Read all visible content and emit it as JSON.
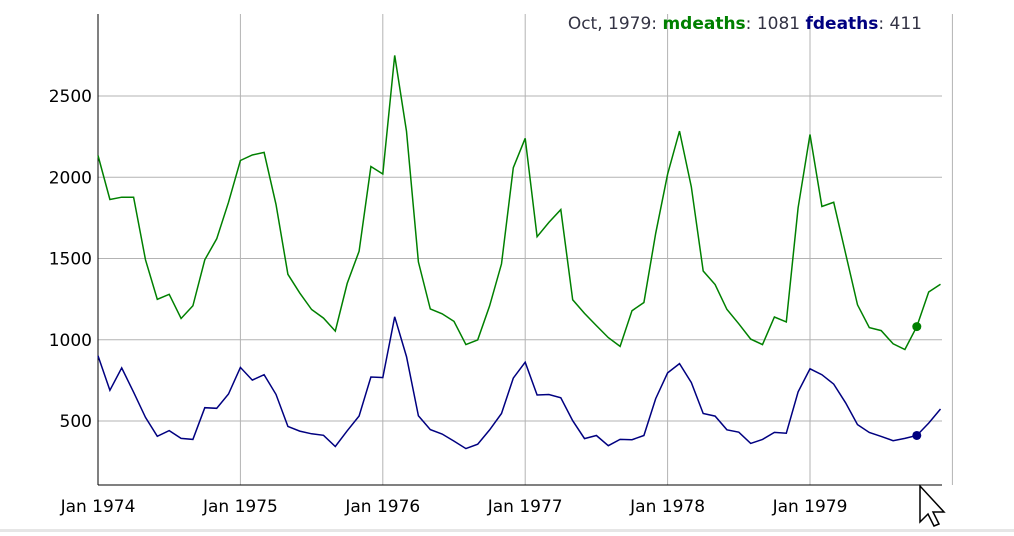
{
  "legend": {
    "date": "Oct, 1979",
    "sep1": ": ",
    "series1_label": "mdeaths",
    "sep2": ": ",
    "series1_value": "1081",
    "series2_label": "fdeaths",
    "sep3": ": ",
    "series2_value": "411"
  },
  "colors": {
    "mdeaths": "#008000",
    "fdeaths": "#000080",
    "grid": "#b3b3b3",
    "axis": "#000000"
  },
  "cursor_icon": "mouse-pointer-icon",
  "chart_data": {
    "type": "line",
    "title": "",
    "xlabel": "",
    "ylabel": "",
    "x_start": "Jan 1974",
    "x_frequency": "monthly",
    "x_tick_labels": [
      "Jan 1974",
      "Jan 1975",
      "Jan 1976",
      "Jan 1977",
      "Jan 1978",
      "Jan 1979"
    ],
    "y_tick_values": [
      500,
      1000,
      1500,
      2000,
      2500
    ],
    "y_tick_labels": [
      "500",
      "1000",
      "1500",
      "2000",
      "2500"
    ],
    "ylim": [
      150,
      2900
    ],
    "grid": true,
    "highlight": {
      "date": "Oct, 1979",
      "mdeaths": 1081,
      "fdeaths": 411
    },
    "series": [
      {
        "name": "mdeaths",
        "values": [
          2134,
          1863,
          1877,
          1877,
          1492,
          1249,
          1280,
          1131,
          1209,
          1492,
          1621,
          1846,
          2103,
          2137,
          2153,
          1833,
          1403,
          1288,
          1186,
          1133,
          1053,
          1347,
          1545,
          2066,
          2020,
          2750,
          2283,
          1479,
          1189,
          1160,
          1113,
          970,
          999,
          1208,
          1467,
          2059,
          2240,
          1634,
          1722,
          1801,
          1246,
          1162,
          1087,
          1013,
          959,
          1179,
          1229,
          1655,
          2019,
          2284,
          1942,
          1423,
          1340,
          1187,
          1098,
          1004,
          970,
          1140,
          1110,
          1812,
          2263,
          1820,
          1846,
          1531,
          1215,
          1075,
          1056,
          975,
          940,
          1081,
          1294,
          1341
        ]
      },
      {
        "name": "fdeaths",
        "values": [
          901,
          689,
          827,
          677,
          522,
          406,
          441,
          393,
          387,
          582,
          578,
          666,
          830,
          752,
          785,
          664,
          467,
          438,
          421,
          412,
          343,
          440,
          531,
          771,
          767,
          1141,
          896,
          532,
          447,
          420,
          376,
          330,
          357,
          445,
          546,
          764,
          862,
          660,
          663,
          643,
          502,
          392,
          411,
          348,
          387,
          385,
          411,
          638,
          796,
          853,
          737,
          546,
          530,
          446,
          431,
          362,
          387,
          430,
          425,
          679,
          821,
          785,
          727,
          612,
          478,
          429,
          405,
          379,
          393,
          411,
          487,
          574
        ]
      }
    ]
  }
}
